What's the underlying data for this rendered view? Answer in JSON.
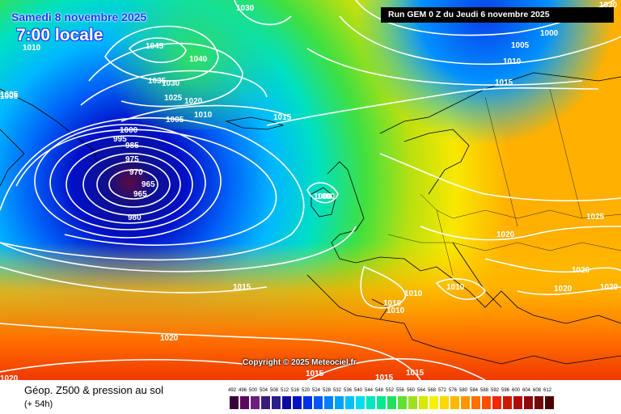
{
  "header": {
    "date": "Samedi 8 novembre 2025",
    "time": "7:00 locale",
    "run": "Run GEM 0 Z du Jeudi 6 novembre 2025"
  },
  "copyright": "Copyright © 2025 Meteociel.fr",
  "footer": {
    "title": "Géop. Z500 & pression au sol",
    "lead": "(+ 54h)"
  },
  "legend": {
    "labels": [
      "492",
      "496",
      "500",
      "504",
      "508",
      "512",
      "516",
      "520",
      "524",
      "528",
      "532",
      "536",
      "540",
      "544",
      "548",
      "552",
      "556",
      "560",
      "564",
      "568",
      "572",
      "576",
      "580",
      "584",
      "588",
      "592",
      "596",
      "600",
      "604",
      "608",
      "612"
    ],
    "colors": [
      "#3a0038",
      "#5a0a5e",
      "#6f1e80",
      "#3a1a7a",
      "#2a1f8a",
      "#0a0a9e",
      "#0010c8",
      "#0030e8",
      "#0058f8",
      "#0080ff",
      "#00a0ff",
      "#00c0ff",
      "#00ddf0",
      "#00e6c0",
      "#00e890",
      "#20e060",
      "#60e030",
      "#a0e020",
      "#d8e800",
      "#f8f000",
      "#ffd800",
      "#ffb800",
      "#ff9400",
      "#ff7000",
      "#ff4e00",
      "#f02800",
      "#d01800",
      "#b00a0a",
      "#8e0a0a",
      "#6e0a0a",
      "#4a0000"
    ]
  },
  "isobar_labels": [
    "1030",
    "1045",
    "1040",
    "1035",
    "1030",
    "1025",
    "1020",
    "1010",
    "1015",
    "1005",
    "1000",
    "995",
    "985",
    "975",
    "970",
    "965",
    "965",
    "980",
    "1010",
    "1005",
    "1000",
    "1005",
    "1010",
    "1015",
    "1000",
    "1020",
    "1025",
    "1020",
    "1020",
    "1020",
    "1015",
    "1010",
    "1010",
    "1010",
    "1010",
    "1020",
    "1015",
    "1015",
    "1015",
    "1020",
    "1005",
    "1000",
    "1030"
  ]
}
